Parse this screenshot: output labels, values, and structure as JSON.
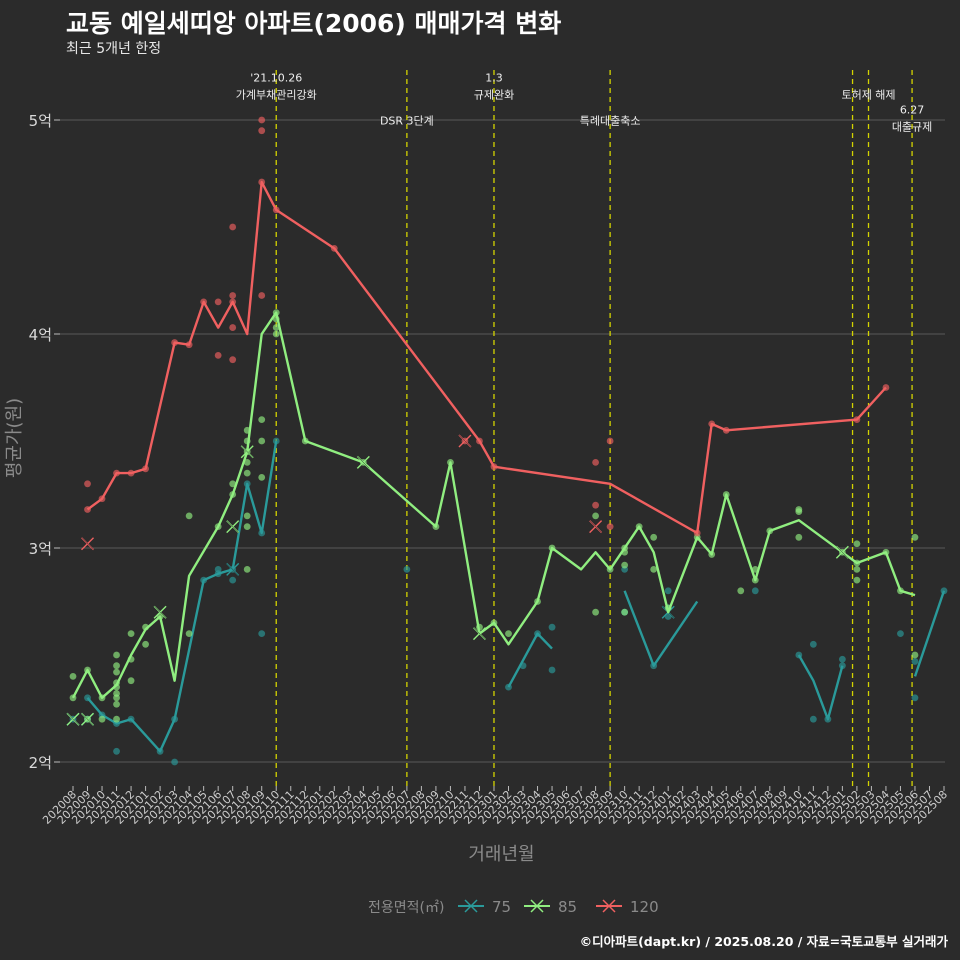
{
  "title": "교동 예일세띠앙 아파트(2006) 매매가격 변화",
  "subtitle": "최근 5개년 한정",
  "footer": "©디아파트(dapt.kr) / 2025.08.20 / 자료=국토교통부 실거래가",
  "colors": {
    "background": "#2b2b2b",
    "grid": "#5a5a5a",
    "event_line": "#d4d400",
    "s75": "#2a9a9a",
    "s85": "#90ee80",
    "s120": "#f06060"
  },
  "chart_data": {
    "type": "line",
    "xlabel": "거래년월",
    "ylabel": "평균가(원)",
    "ylim": [
      1.87,
      5.2
    ],
    "yticks": [
      {
        "value": 2,
        "label": "2억"
      },
      {
        "value": 3,
        "label": "3억"
      },
      {
        "value": 4,
        "label": "4억"
      },
      {
        "value": 5,
        "label": "5억"
      }
    ],
    "categories": [
      "202008",
      "202009",
      "202010",
      "202011",
      "202012",
      "202101",
      "202102",
      "202103",
      "202104",
      "202105",
      "202106",
      "202107",
      "202108",
      "202109",
      "202110",
      "202111",
      "202112",
      "202201",
      "202202",
      "202203",
      "202204",
      "202205",
      "202206",
      "202207",
      "202208",
      "202209",
      "202210",
      "202211",
      "202212",
      "202301",
      "202302",
      "202303",
      "202304",
      "202305",
      "202306",
      "202307",
      "202308",
      "202309",
      "202310",
      "202311",
      "202312",
      "202401",
      "202402",
      "202403",
      "202404",
      "202405",
      "202406",
      "202407",
      "202408",
      "202409",
      "202410",
      "202411",
      "202412",
      "202501",
      "202502",
      "202503",
      "202504",
      "202505",
      "202506",
      "202507",
      "202508"
    ],
    "legend": {
      "title": "전용면적(㎡)",
      "items": [
        "75",
        "85",
        "120"
      ]
    },
    "events": [
      {
        "x": 14,
        "label_lines": [
          "'21.10.26",
          "가계부채관리강화"
        ],
        "label_y": 5.18
      },
      {
        "x": 23,
        "label_lines": [
          "DSR 3단계"
        ],
        "label_y": 4.98
      },
      {
        "x": 29,
        "label_lines": [
          "1.3",
          "규제완화"
        ],
        "label_y": 5.18
      },
      {
        "x": 37,
        "label_lines": [
          "특례대출축소"
        ],
        "label_y": 4.98
      },
      {
        "x": 53.7,
        "label_lines": [],
        "label_y": 5.1
      },
      {
        "x": 54.8,
        "label_lines": [
          "토허제 해제"
        ],
        "label_y": 5.1
      },
      {
        "x": 57.8,
        "label_lines": [
          "6.27",
          "대출규제"
        ],
        "label_y": 5.03
      }
    ],
    "series": [
      {
        "name": "75",
        "color": "#2a9a9a",
        "segments": [
          [
            [
              1,
              2.3
            ],
            [
              2,
              2.22
            ],
            [
              3,
              2.18
            ],
            [
              4,
              2.2
            ],
            [
              6,
              2.05
            ],
            [
              7,
              2.2
            ],
            [
              9,
              2.85
            ],
            [
              10,
              2.88
            ],
            [
              11,
              2.9
            ],
            [
              12,
              3.3
            ],
            [
              13,
              3.07
            ],
            [
              14,
              3.5
            ]
          ],
          [
            [
              30,
              2.35
            ],
            [
              32,
              2.6
            ],
            [
              33,
              2.53
            ]
          ],
          [
            [
              38,
              2.8
            ],
            [
              40,
              2.45
            ],
            [
              43,
              2.75
            ]
          ],
          [
            [
              50,
              2.5
            ],
            [
              51,
              2.38
            ],
            [
              52,
              2.2
            ],
            [
              53,
              2.45
            ]
          ],
          [
            [
              58,
              2.4
            ],
            [
              60,
              2.8
            ]
          ]
        ],
        "points": [
          [
            0,
            2.2
          ],
          [
            1,
            2.2
          ],
          [
            1,
            2.3
          ],
          [
            2,
            2.22
          ],
          [
            3,
            2.05
          ],
          [
            3,
            2.18
          ],
          [
            4,
            2.2
          ],
          [
            6,
            2.05
          ],
          [
            7,
            2.0
          ],
          [
            7,
            2.2
          ],
          [
            9,
            2.85
          ],
          [
            10,
            2.88
          ],
          [
            10,
            2.9
          ],
          [
            11,
            2.85
          ],
          [
            11,
            2.9
          ],
          [
            12,
            3.3
          ],
          [
            13,
            2.6
          ],
          [
            13,
            3.07
          ],
          [
            14,
            3.5
          ],
          [
            23,
            2.9
          ],
          [
            30,
            2.35
          ],
          [
            31,
            2.45
          ],
          [
            32,
            2.6
          ],
          [
            33,
            2.43
          ],
          [
            33,
            2.63
          ],
          [
            38,
            2.9
          ],
          [
            38,
            2.7
          ],
          [
            40,
            2.45
          ],
          [
            41,
            2.72
          ],
          [
            41,
            2.68
          ],
          [
            41,
            2.8
          ],
          [
            47,
            2.8
          ],
          [
            50,
            2.5
          ],
          [
            51,
            2.55
          ],
          [
            51,
            2.2
          ],
          [
            52,
            2.2
          ],
          [
            53,
            2.45
          ],
          [
            53,
            2.48
          ],
          [
            57,
            2.6
          ],
          [
            58,
            2.47
          ],
          [
            58,
            2.3
          ],
          [
            60,
            2.8
          ]
        ],
        "crosses": [
          [
            0,
            2.2
          ],
          [
            1,
            2.2
          ],
          [
            11,
            2.9
          ],
          [
            41,
            2.7
          ]
        ]
      },
      {
        "name": "85",
        "color": "#90ee80",
        "segments": [
          [
            [
              0,
              2.3
            ],
            [
              1,
              2.43
            ],
            [
              2,
              2.3
            ],
            [
              3,
              2.36
            ],
            [
              4,
              2.5
            ],
            [
              5,
              2.62
            ],
            [
              6,
              2.68
            ],
            [
              7,
              2.38
            ],
            [
              8,
              2.87
            ],
            [
              10,
              3.1
            ],
            [
              11,
              3.25
            ],
            [
              12,
              3.45
            ],
            [
              13,
              4.0
            ],
            [
              14,
              4.1
            ],
            [
              16,
              3.5
            ],
            [
              20,
              3.4
            ],
            [
              25,
              3.1
            ],
            [
              26,
              3.4
            ],
            [
              28,
              2.6
            ],
            [
              29,
              2.65
            ],
            [
              30,
              2.55
            ],
            [
              32,
              2.75
            ],
            [
              33,
              3.0
            ],
            [
              35,
              2.9
            ],
            [
              36,
              2.98
            ],
            [
              37,
              2.9
            ],
            [
              39,
              3.1
            ],
            [
              40,
              2.98
            ],
            [
              41,
              2.7
            ],
            [
              43,
              3.05
            ],
            [
              44,
              2.97
            ],
            [
              45,
              3.25
            ],
            [
              47,
              2.85
            ],
            [
              48,
              3.08
            ],
            [
              50,
              3.13
            ],
            [
              53,
              2.98
            ],
            [
              54,
              2.93
            ],
            [
              56,
              2.98
            ],
            [
              57,
              2.8
            ],
            [
              58,
              2.78
            ]
          ]
        ],
        "points": [
          [
            0,
            2.4
          ],
          [
            0,
            2.3
          ],
          [
            1,
            2.43
          ],
          [
            1,
            2.2
          ],
          [
            2,
            2.2
          ],
          [
            2,
            2.3
          ],
          [
            3,
            2.5
          ],
          [
            3,
            2.45
          ],
          [
            3,
            2.42
          ],
          [
            3,
            2.37
          ],
          [
            3,
            2.35
          ],
          [
            3,
            2.32
          ],
          [
            3,
            2.3
          ],
          [
            3,
            2.27
          ],
          [
            3,
            2.2
          ],
          [
            4,
            2.38
          ],
          [
            4,
            2.48
          ],
          [
            4,
            2.6
          ],
          [
            5,
            2.55
          ],
          [
            5,
            2.63
          ],
          [
            6,
            2.68
          ],
          [
            8,
            2.6
          ],
          [
            8,
            3.15
          ],
          [
            10,
            3.1
          ],
          [
            11,
            3.25
          ],
          [
            11,
            3.3
          ],
          [
            12,
            3.55
          ],
          [
            12,
            3.5
          ],
          [
            12,
            3.45
          ],
          [
            12,
            3.4
          ],
          [
            12,
            3.35
          ],
          [
            12,
            3.15
          ],
          [
            12,
            3.1
          ],
          [
            12,
            2.9
          ],
          [
            13,
            3.6
          ],
          [
            13,
            3.5
          ],
          [
            13,
            3.33
          ],
          [
            14,
            4.07
          ],
          [
            14,
            4.03
          ],
          [
            14,
            4.0
          ],
          [
            14,
            4.1
          ],
          [
            16,
            3.5
          ],
          [
            20,
            3.4
          ],
          [
            25,
            3.1
          ],
          [
            26,
            3.4
          ],
          [
            28,
            2.63
          ],
          [
            29,
            2.65
          ],
          [
            30,
            2.6
          ],
          [
            32,
            2.75
          ],
          [
            33,
            3.0
          ],
          [
            36,
            2.7
          ],
          [
            36,
            3.15
          ],
          [
            37,
            2.9
          ],
          [
            38,
            2.98
          ],
          [
            38,
            3.0
          ],
          [
            38,
            2.92
          ],
          [
            38,
            2.7
          ],
          [
            39,
            3.1
          ],
          [
            40,
            3.05
          ],
          [
            40,
            2.9
          ],
          [
            41,
            2.72
          ],
          [
            43,
            3.05
          ],
          [
            44,
            2.97
          ],
          [
            45,
            3.25
          ],
          [
            46,
            2.8
          ],
          [
            47,
            2.9
          ],
          [
            47,
            2.85
          ],
          [
            48,
            3.08
          ],
          [
            50,
            3.18
          ],
          [
            50,
            3.17
          ],
          [
            50,
            3.05
          ],
          [
            53,
            2.98
          ],
          [
            54,
            2.93
          ],
          [
            54,
            3.02
          ],
          [
            54,
            2.9
          ],
          [
            54,
            2.85
          ],
          [
            56,
            2.98
          ],
          [
            57,
            2.8
          ],
          [
            58,
            2.5
          ],
          [
            58,
            3.05
          ]
        ],
        "crosses": [
          [
            0,
            2.2
          ],
          [
            1,
            2.2
          ],
          [
            6,
            2.7
          ],
          [
            11,
            3.1
          ],
          [
            12,
            3.45
          ],
          [
            20,
            3.4
          ],
          [
            28,
            2.6
          ],
          [
            53,
            2.98
          ]
        ]
      },
      {
        "name": "120",
        "color": "#f06060",
        "segments": [
          [
            [
              1,
              3.18
            ],
            [
              2,
              3.23
            ],
            [
              3,
              3.35
            ],
            [
              4,
              3.35
            ],
            [
              5,
              3.37
            ],
            [
              7,
              3.96
            ],
            [
              8,
              3.95
            ],
            [
              9,
              4.15
            ],
            [
              10,
              4.03
            ],
            [
              11,
              4.15
            ],
            [
              12,
              4.0
            ],
            [
              13,
              4.71
            ],
            [
              14,
              4.58
            ],
            [
              18,
              4.4
            ],
            [
              28,
              3.5
            ],
            [
              29,
              3.38
            ],
            [
              37,
              3.3
            ],
            [
              43,
              3.07
            ],
            [
              44,
              3.58
            ],
            [
              45,
              3.55
            ],
            [
              54,
              3.6
            ],
            [
              56,
              3.75
            ]
          ]
        ],
        "points": [
          [
            1,
            3.3
          ],
          [
            1,
            3.18
          ],
          [
            2,
            3.23
          ],
          [
            3,
            3.35
          ],
          [
            4,
            3.35
          ],
          [
            5,
            3.37
          ],
          [
            7,
            3.96
          ],
          [
            8,
            3.95
          ],
          [
            9,
            4.15
          ],
          [
            10,
            4.15
          ],
          [
            10,
            3.9
          ],
          [
            11,
            4.5
          ],
          [
            11,
            4.15
          ],
          [
            11,
            4.03
          ],
          [
            11,
            3.88
          ],
          [
            11,
            4.18
          ],
          [
            13,
            5.0
          ],
          [
            13,
            4.95
          ],
          [
            13,
            4.71
          ],
          [
            13,
            4.18
          ],
          [
            14,
            4.58
          ],
          [
            18,
            4.4
          ],
          [
            27,
            3.5
          ],
          [
            28,
            3.5
          ],
          [
            29,
            3.38
          ],
          [
            36,
            3.4
          ],
          [
            36,
            3.2
          ],
          [
            37,
            3.1
          ],
          [
            37,
            3.5
          ],
          [
            43,
            3.07
          ],
          [
            44,
            3.58
          ],
          [
            45,
            3.55
          ],
          [
            54,
            3.6
          ],
          [
            56,
            3.75
          ]
        ],
        "crosses": [
          [
            1,
            3.02
          ],
          [
            27,
            3.5
          ],
          [
            36,
            3.1
          ]
        ]
      }
    ]
  }
}
